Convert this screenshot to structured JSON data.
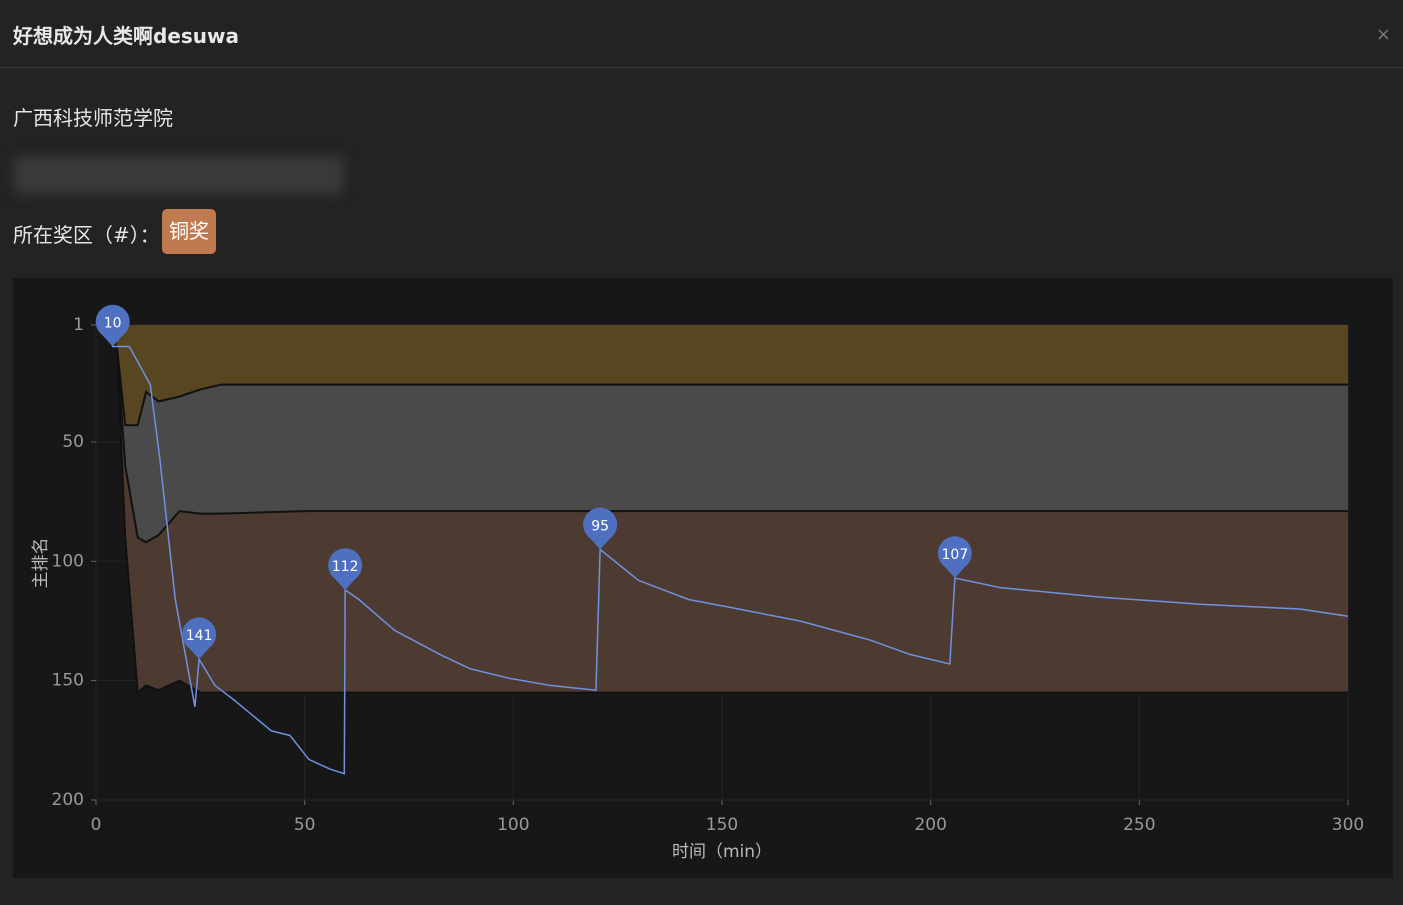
{
  "header": {
    "title": "好想成为人类啊desuwa",
    "close": "×"
  },
  "school": "广西科技师范学院",
  "award": {
    "label": "所在奖区（#）：",
    "badge": "铜奖"
  },
  "chart_data": {
    "type": "line",
    "y_reversed": true,
    "xlabel": "时间（min）",
    "ylabel": "主排名",
    "xlim": [
      0,
      300
    ],
    "xticks": [
      0,
      50,
      100,
      150,
      200,
      250,
      300
    ],
    "ylim": [
      1,
      200
    ],
    "yticks": [
      1,
      50,
      100,
      150,
      200
    ],
    "grid": true,
    "x": [
      2,
      4,
      8,
      13,
      15.3,
      19,
      23.7,
      24.7,
      28.5,
      33,
      42,
      46.5,
      51,
      56,
      59.5,
      59.7,
      63,
      71.6,
      82.4,
      89.6,
      99,
      108.8,
      119.8,
      120.8,
      130,
      142,
      154,
      168.7,
      185.5,
      195,
      204.6,
      205.8,
      216.6,
      240.6,
      264.6,
      288.5,
      300
    ],
    "series": [
      {
        "color": "#6f92e0",
        "values": [
          1,
          10,
          10,
          26,
          57,
          116,
          161,
          141,
          152,
          158,
          171,
          173,
          183,
          187,
          189,
          112,
          116,
          129,
          139,
          145,
          149,
          152,
          154,
          95,
          108,
          116,
          120,
          125,
          133,
          139,
          143,
          107,
          111,
          115,
          118,
          120,
          123
        ]
      }
    ],
    "markers": {
      "color": "#4f6fc0",
      "x": [
        4,
        24.7,
        59.7,
        120.8,
        205.8
      ],
      "y": [
        10,
        141,
        112,
        95,
        107
      ]
    },
    "band_x": [
      5,
      7,
      10,
      12,
      15,
      20,
      25,
      30,
      50,
      60,
      100,
      200,
      300
    ],
    "band_bounds": [
      [
        1,
        1,
        1,
        1,
        1,
        1,
        1,
        1,
        1,
        1,
        1,
        1,
        1
      ],
      [
        10,
        43,
        43,
        29,
        33,
        31,
        28,
        26,
        26,
        26,
        26,
        26,
        26
      ],
      [
        10,
        60,
        90,
        92,
        89,
        79,
        80,
        80,
        79,
        79,
        79,
        79,
        79
      ],
      [
        10,
        90,
        155,
        152,
        154,
        150,
        155,
        155,
        155,
        155,
        155,
        155,
        155
      ]
    ],
    "band_colors": [
      "#574620",
      "#4a4a4a",
      "#4d3b32"
    ]
  }
}
